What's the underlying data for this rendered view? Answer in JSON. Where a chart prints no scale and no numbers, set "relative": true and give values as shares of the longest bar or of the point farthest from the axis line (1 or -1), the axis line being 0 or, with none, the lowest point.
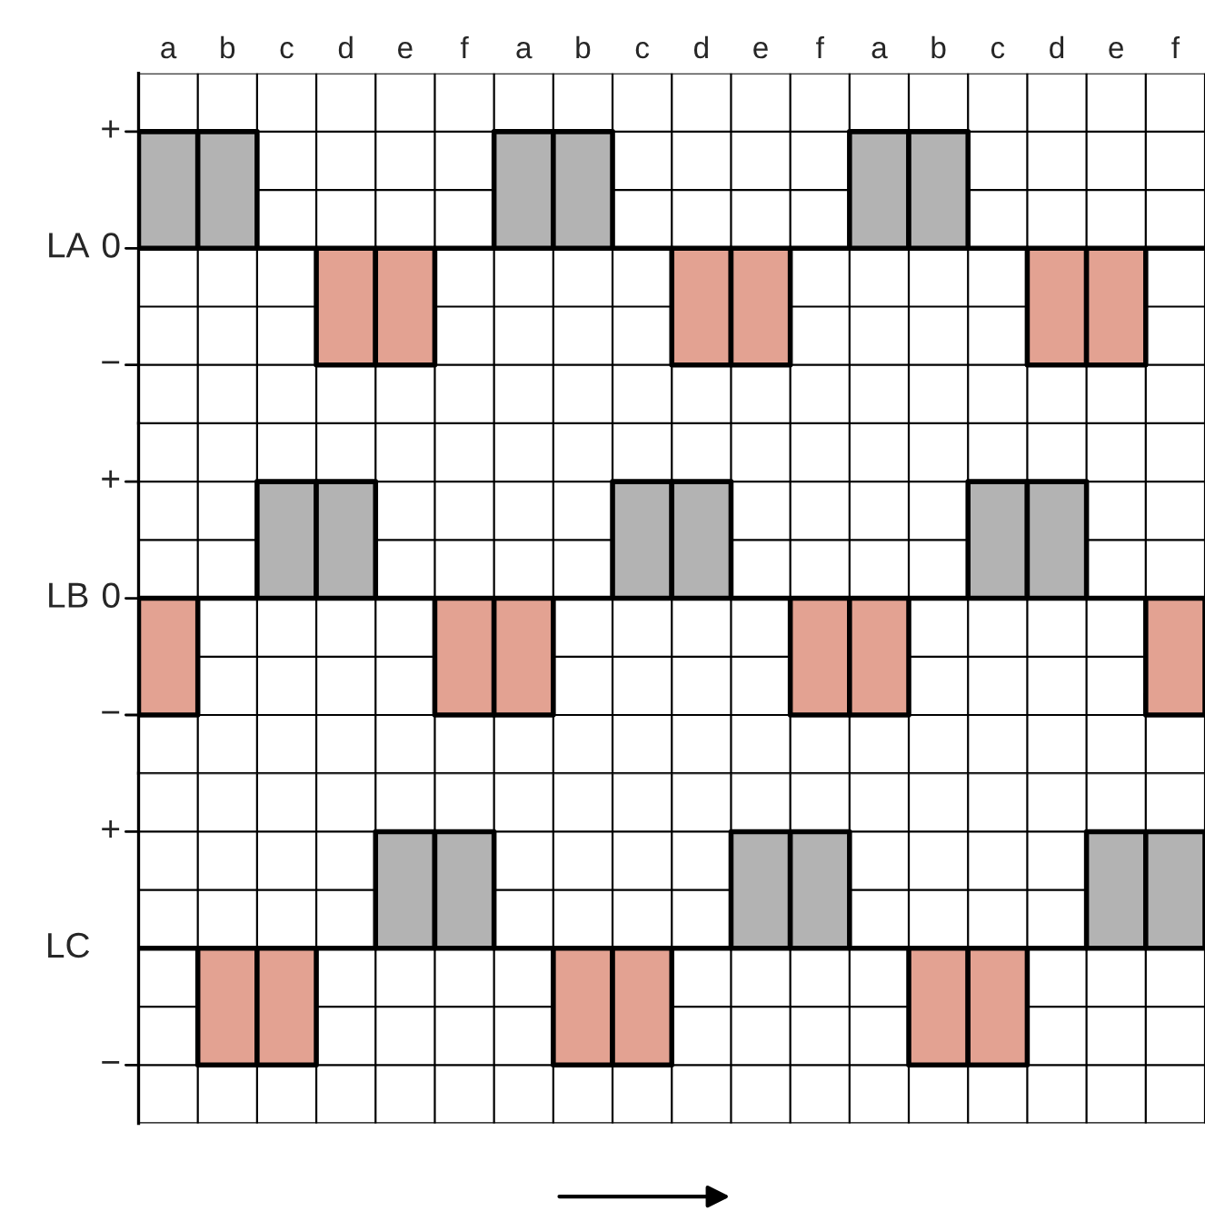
{
  "chart_data": [
    {
      "type": "bar",
      "relative": true,
      "ylabel": "LA",
      "annotations": [
        "+",
        "0",
        "−"
      ],
      "categories": [
        "a",
        "b",
        "c",
        "d",
        "e",
        "f",
        "a",
        "b",
        "c",
        "d",
        "e",
        "f",
        "a",
        "b",
        "c",
        "d",
        "e",
        "f"
      ],
      "values": [
        1,
        1,
        0,
        -1,
        -1,
        0,
        1,
        1,
        0,
        -1,
        -1,
        0,
        1,
        1,
        0,
        -1,
        -1,
        0
      ],
      "colors": [
        "#b3b3b3",
        "#b3b3b3",
        "#000000",
        "#e3a292",
        "#e3a292",
        "#000000",
        "#b3b3b3",
        "#b3b3b3",
        "#000000",
        "#e3a292",
        "#e3a292",
        "#000000",
        "#b3b3b3",
        "#b3b3b3",
        "#000000",
        "#e3a292",
        "#e3a292",
        "#000000"
      ],
      "grid": true
    },
    {
      "type": "bar",
      "relative": true,
      "ylabel": "LB",
      "annotations": [
        "+",
        "0",
        "−"
      ],
      "categories": [
        null,
        null,
        null,
        null,
        null,
        null,
        null,
        null,
        null,
        null,
        null,
        null,
        null,
        null,
        null,
        null,
        null,
        null
      ],
      "values": [
        -1,
        0,
        1,
        1,
        0,
        -1,
        -1,
        0,
        1,
        1,
        0,
        -1,
        -1,
        0,
        1,
        1,
        0,
        -1
      ],
      "colors": [
        "#e3a292",
        "#000000",
        "#b3b3b3",
        "#b3b3b3",
        "#000000",
        "#e3a292",
        "#e3a292",
        "#000000",
        "#b3b3b3",
        "#b3b3b3",
        "#000000",
        "#e3a292",
        "#e3a292",
        "#000000",
        "#b3b3b3",
        "#b3b3b3",
        "#000000",
        "#e3a292"
      ],
      "grid": true
    },
    {
      "type": "bar",
      "relative": true,
      "ylabel": "LC",
      "annotations": [
        "+",
        "−"
      ],
      "categories": [
        null,
        null,
        null,
        null,
        null,
        null,
        null,
        null,
        null,
        null,
        null,
        null,
        null,
        null,
        null,
        null,
        null,
        null
      ],
      "values": [
        0,
        -1,
        -1,
        0,
        1,
        1,
        0,
        -1,
        -1,
        0,
        1,
        1,
        0,
        -1,
        -1,
        0,
        1,
        1
      ],
      "colors": [
        "#000000",
        "#e3a292",
        "#e3a292",
        "#000000",
        "#b3b3b3",
        "#b3b3b3",
        "#000000",
        "#e3a292",
        "#e3a292",
        "#000000",
        "#b3b3b3",
        "#b3b3b3",
        "#000000",
        "#e3a292",
        "#e3a292",
        "#000000",
        "#b3b3b3",
        "#b3b3b3"
      ],
      "grid": true
    }
  ]
}
